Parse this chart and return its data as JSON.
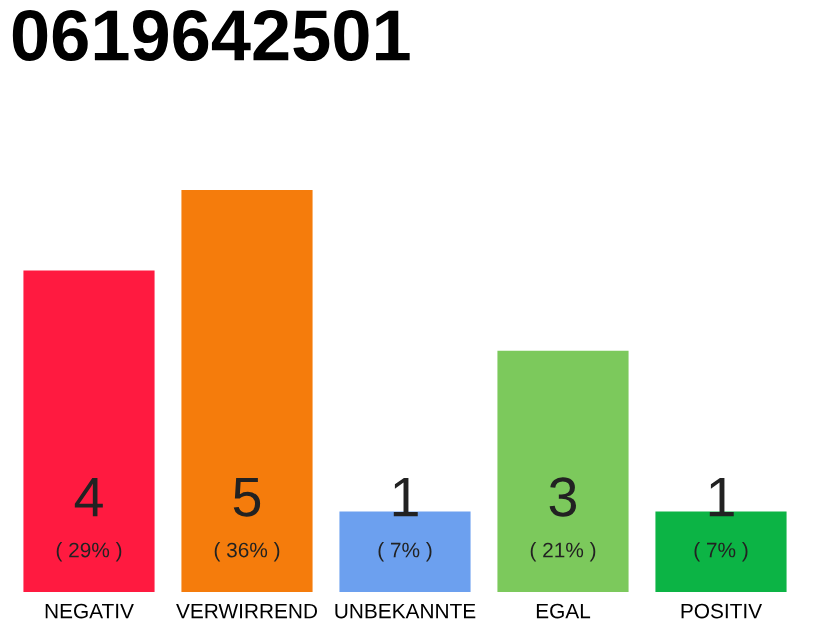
{
  "chart_data": {
    "type": "bar",
    "title": "0619642501",
    "categories": [
      "NEGATIV",
      "VERWIRREND",
      "UNBEKANNTE",
      "EGAL",
      "POSITIV"
    ],
    "values": [
      4,
      5,
      1,
      3,
      1
    ],
    "colors": [
      "#ff1a40",
      "#f57c0c",
      "#6ca0ef",
      "#7cc95c",
      "#0cb445"
    ],
    "value_labels": [
      "4\n( 29% )",
      "5\n( 36% )",
      "1\n( 7% )",
      "3\n( 21% )",
      "1\n( 7% )"
    ],
    "grid": false,
    "legend": false
  }
}
